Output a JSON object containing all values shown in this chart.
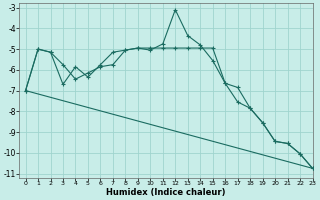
{
  "title": "",
  "xlabel": "Humidex (Indice chaleur)",
  "xlim": [
    -0.5,
    23
  ],
  "ylim": [
    -11.2,
    -2.8
  ],
  "yticks": [
    -11,
    -10,
    -9,
    -8,
    -7,
    -6,
    -5,
    -4,
    -3
  ],
  "xticks": [
    0,
    1,
    2,
    3,
    4,
    5,
    6,
    7,
    8,
    9,
    10,
    11,
    12,
    13,
    14,
    15,
    16,
    17,
    18,
    19,
    20,
    21,
    22,
    23
  ],
  "bg_color": "#c8ede8",
  "grid_color": "#a0d4ce",
  "line_color": "#1a6b60",
  "line1_x": [
    0,
    1,
    2,
    3,
    4,
    5,
    6,
    7,
    8,
    9,
    10,
    11,
    12,
    13,
    14,
    15,
    16,
    17,
    18,
    19,
    20,
    21,
    22,
    23
  ],
  "line1_y": [
    -7.0,
    -5.0,
    -5.15,
    -6.7,
    -5.85,
    -6.35,
    -5.75,
    -5.15,
    -5.05,
    -4.95,
    -5.05,
    -4.75,
    -3.1,
    -4.35,
    -4.8,
    -5.55,
    -6.65,
    -6.85,
    -7.85,
    -8.55,
    -9.45,
    -9.55,
    -10.05,
    -10.75
  ],
  "line2_x": [
    0,
    1,
    2,
    3,
    4,
    5,
    6,
    7,
    8,
    9,
    10,
    11,
    12,
    13,
    14,
    15,
    16,
    17,
    18,
    19,
    20,
    21,
    22,
    23
  ],
  "line2_y": [
    -7.0,
    -5.0,
    -5.15,
    -5.75,
    -6.45,
    -6.15,
    -5.85,
    -5.75,
    -5.05,
    -4.95,
    -4.95,
    -4.95,
    -4.95,
    -4.95,
    -4.95,
    -4.95,
    -6.65,
    -7.55,
    -7.85,
    -8.55,
    -9.45,
    -9.55,
    -10.05,
    -10.75
  ],
  "line3_x": [
    0,
    23
  ],
  "line3_y": [
    -7.0,
    -10.75
  ]
}
